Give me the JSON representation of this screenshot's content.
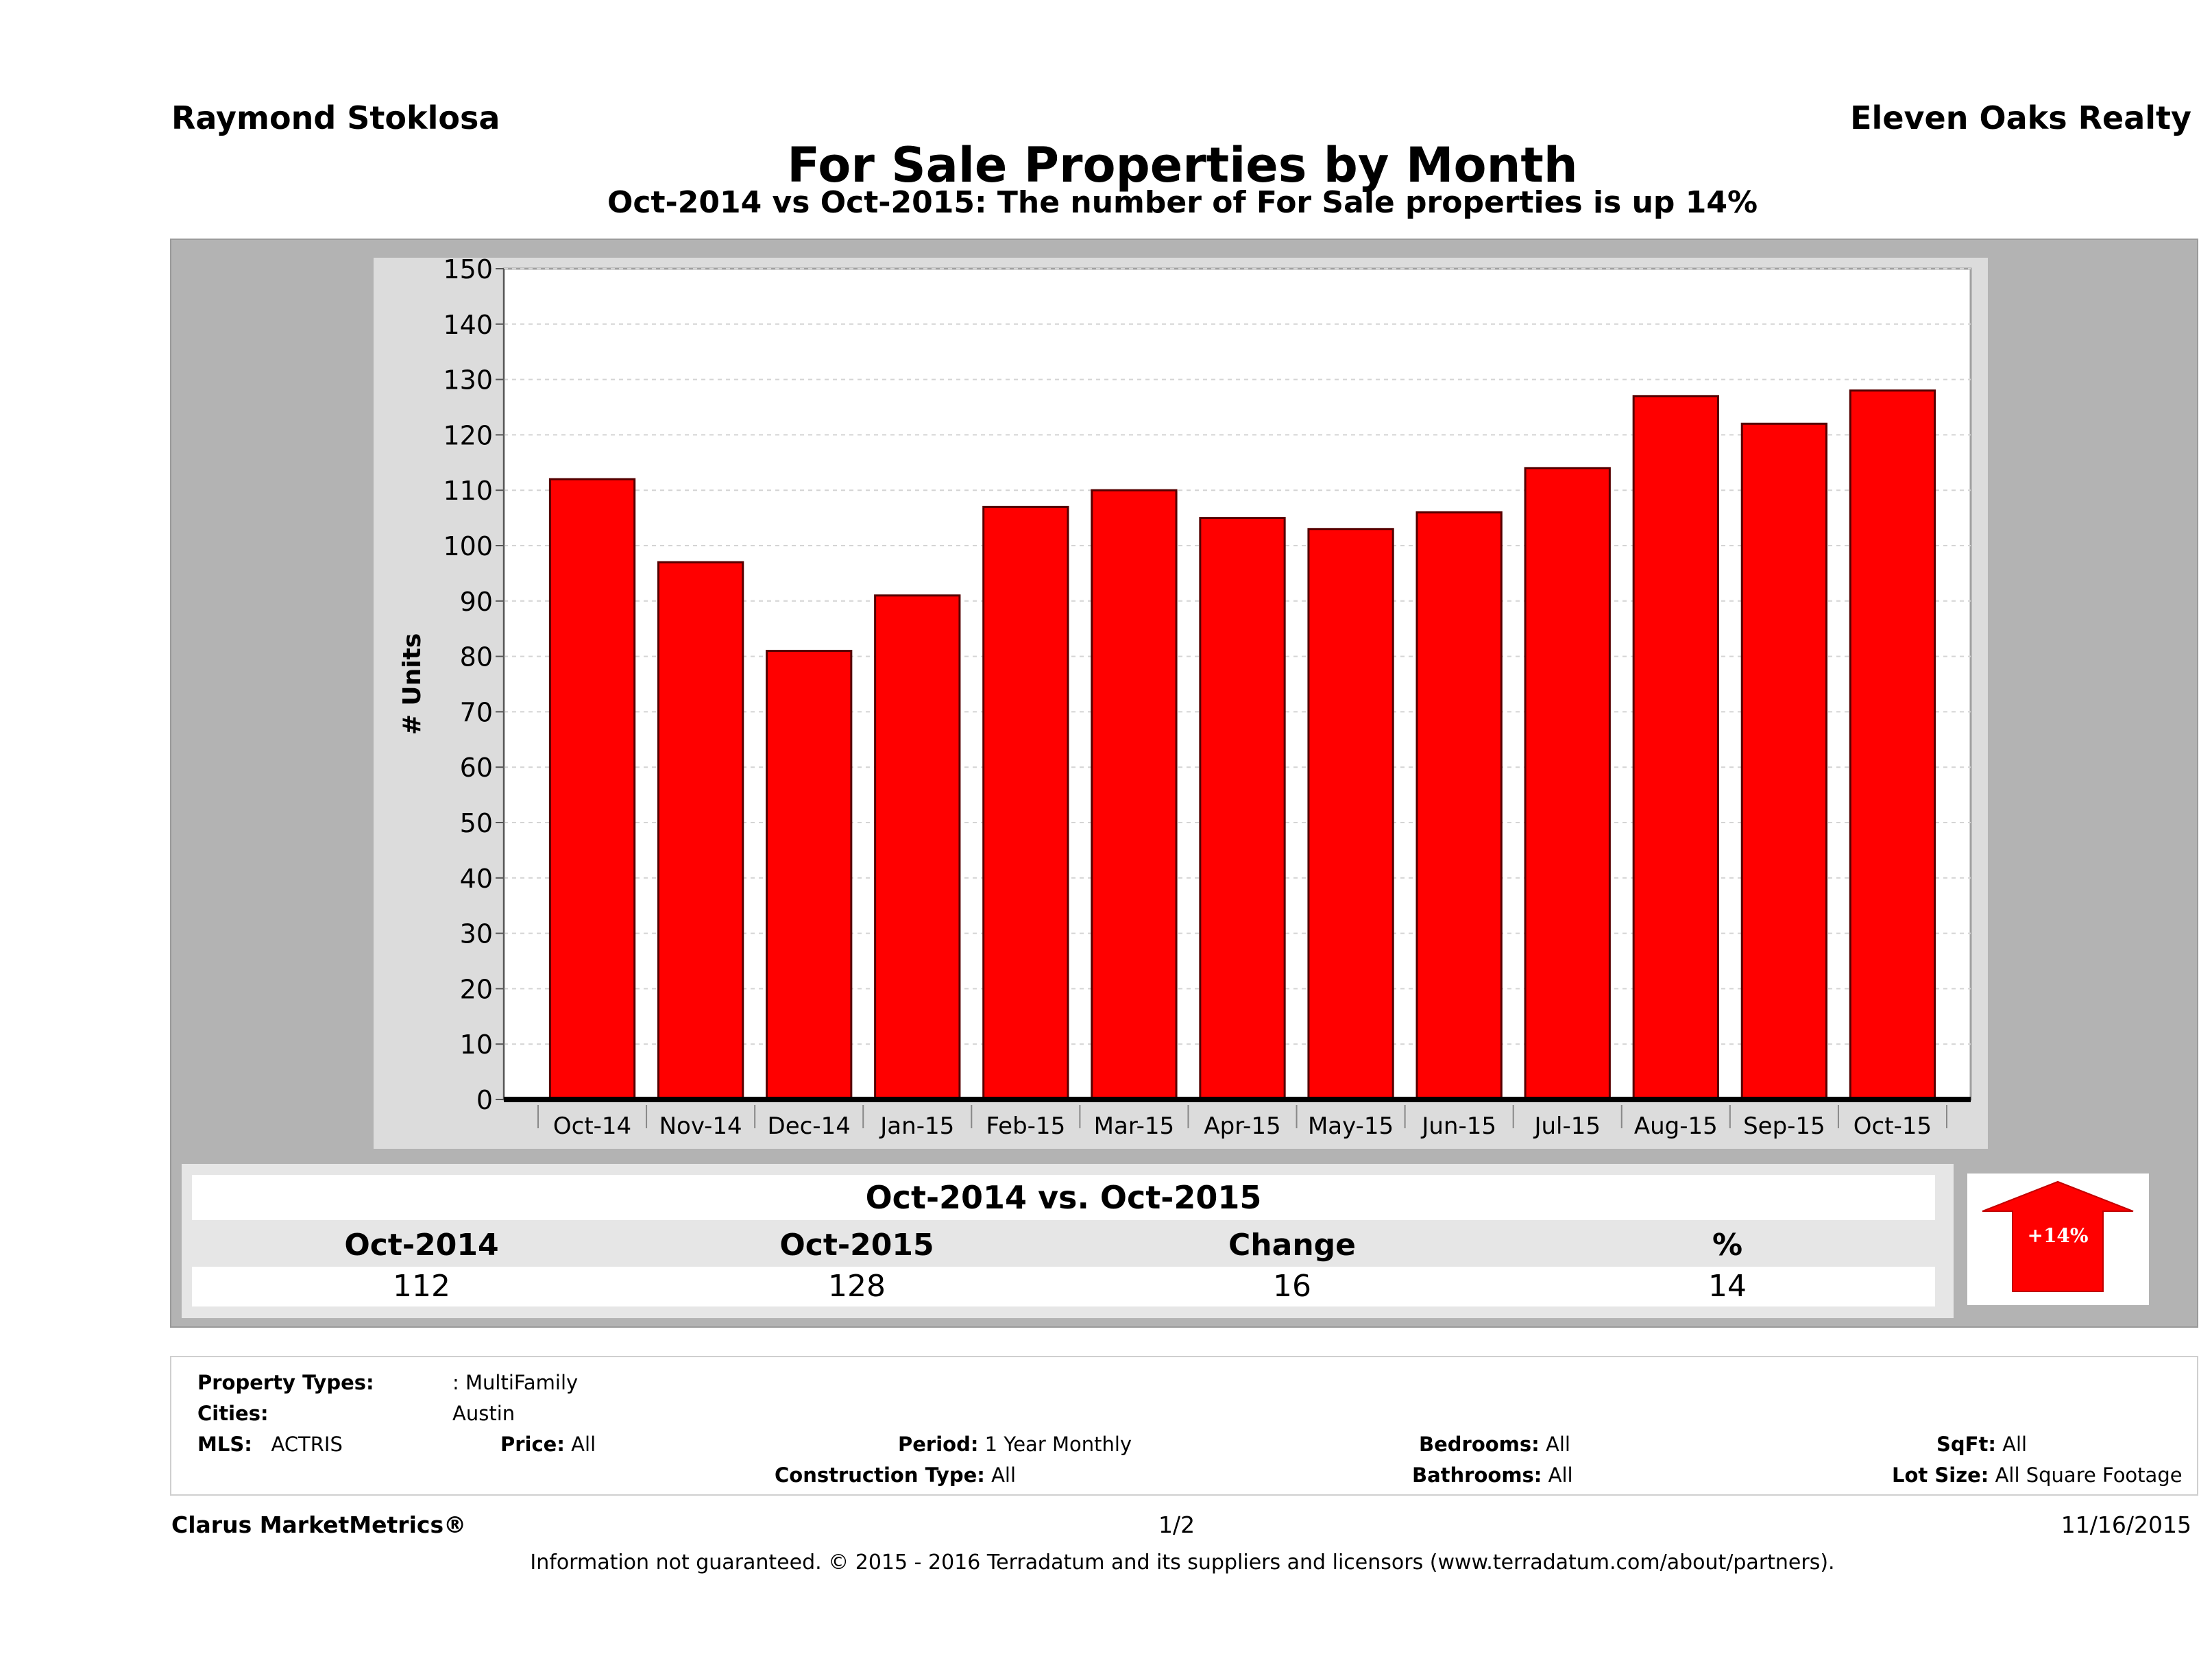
{
  "header": {
    "agent": "Raymond Stoklosa",
    "company": "Eleven Oaks Realty",
    "title": "For Sale Properties by Month",
    "subtitle": "Oct-2014 vs Oct-2015: The number of For Sale  properties is up 14%"
  },
  "chart_data": {
    "type": "bar",
    "categories": [
      "Oct-14",
      "Nov-14",
      "Dec-14",
      "Jan-15",
      "Feb-15",
      "Mar-15",
      "Apr-15",
      "May-15",
      "Jun-15",
      "Jul-15",
      "Aug-15",
      "Sep-15",
      "Oct-15"
    ],
    "values": [
      112,
      97,
      81,
      91,
      107,
      110,
      105,
      103,
      106,
      114,
      127,
      122,
      128
    ],
    "ylabel": "# Units",
    "xlabel": "",
    "ylim": [
      0,
      150
    ],
    "yticks": [
      0,
      10,
      20,
      30,
      40,
      50,
      60,
      70,
      80,
      90,
      100,
      110,
      120,
      130,
      140,
      150
    ],
    "grid": true,
    "bar_color": "#ff0000"
  },
  "comparison": {
    "heading": "Oct-2014 vs. Oct-2015",
    "labels": [
      "Oct-2014",
      "Oct-2015",
      "Change",
      "%"
    ],
    "values": [
      "112",
      "128",
      "16",
      "14"
    ],
    "badge": "+14%"
  },
  "info": {
    "property_types_label": "Property Types:",
    "property_types_value": ": MultiFamily",
    "cities_label": "Cities:",
    "cities_value": "Austin",
    "mls_label": "MLS:",
    "mls_value": "ACTRIS",
    "price_label": "Price:",
    "price_value": "All",
    "period_label": "Period:",
    "period_value": "1 Year Monthly",
    "construction_label": "Construction Type:",
    "construction_value": "All",
    "bedrooms_label": "Bedrooms:",
    "bedrooms_value": "All",
    "bathrooms_label": "Bathrooms:",
    "bathrooms_value": "All",
    "sqft_label": "SqFt:",
    "sqft_value": "All",
    "lotsize_label": "Lot Size:",
    "lotsize_value": "All Square Footage"
  },
  "footer": {
    "brand": "Clarus MarketMetrics®",
    "page": "1/2",
    "date": "11/16/2015",
    "disclaimer": "Information not guaranteed. © 2015 - 2016 Terradatum and its suppliers and licensors (www.terradatum.com/about/partners)."
  },
  "colors": {
    "bar": "#ff0000",
    "badge_arrow": "#ff0000"
  }
}
